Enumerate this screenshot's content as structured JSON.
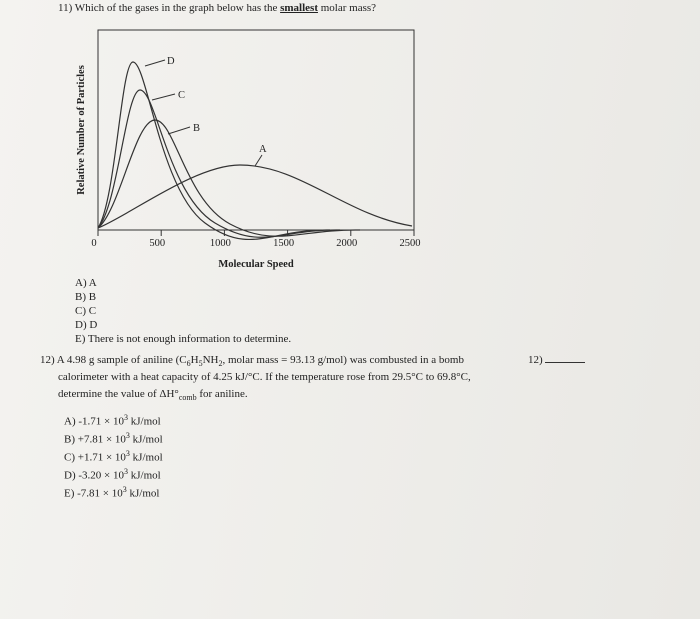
{
  "question11": {
    "prompt": [
      "11) Which of the gases in the graph below has the ",
      "smallest",
      " molar mass?"
    ],
    "graph": {
      "xlabel": "Molecular Speed",
      "ylabel": "Relative Number of Particles",
      "xlim": [
        0,
        2500
      ],
      "xticks": [
        0,
        500,
        1000,
        1500,
        2000,
        2500
      ],
      "curve_labels": [
        "D",
        "C",
        "B",
        "A"
      ]
    },
    "choices": [
      "A) A",
      "B) B",
      "C) C",
      "D) D",
      "E) There is not enough information to determine."
    ]
  },
  "question12": {
    "number_blank": "12)",
    "lines": [
      [
        "12) A 4.98 g sample of aniline (C",
        "6",
        "H",
        "5",
        "NH",
        "2",
        ", molar mass = 93.13 g/mol) was combusted in a bomb"
      ],
      [
        "calorimeter with a heat capacity of 4.25 kJ/°C. If the temperature rose from 29.5°C to 69.8°C,"
      ],
      [
        "determine the value of ΔH°",
        "comb",
        " for aniline."
      ]
    ],
    "choices": [
      {
        "text": "A) -1.71 × 10",
        "exp": "3",
        "unit": " kJ/mol"
      },
      {
        "text": "B) +7.81 × 10",
        "exp": "3",
        "unit": " kJ/mol"
      },
      {
        "text": "C) +1.71 × 10",
        "exp": "3",
        "unit": " kJ/mol"
      },
      {
        "text": "D) -3.20 × 10",
        "exp": "3",
        "unit": " kJ/mol"
      },
      {
        "text": "E) -7.81 × 10",
        "exp": "3",
        "unit": " kJ/mol"
      }
    ]
  }
}
